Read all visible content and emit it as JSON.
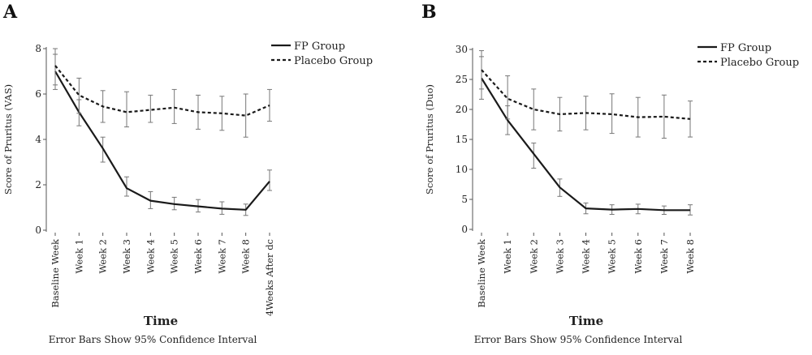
{
  "chart_data": [
    {
      "type": "line",
      "panel_label": "A",
      "ylabel": "Score of Pruritus (VAS)",
      "xlabel": "Time",
      "caption": "Error Bars Show 95% Confidence Interval",
      "ylim": [
        0,
        8
      ],
      "yticks": [
        0,
        2,
        4,
        6,
        8
      ],
      "ytick_labels": [
        "0",
        "2",
        "4",
        "6",
        "8"
      ],
      "categories": [
        "Baseline Week",
        "Week 1",
        "Week 2",
        "Week 3",
        "Week 4",
        "Week 5",
        "Week 6",
        "Week 7",
        "Week 8",
        "4Weeks After dc"
      ],
      "legend_position": "top-right",
      "series": [
        {
          "name": "FP Group",
          "style": "solid",
          "values": [
            7.0,
            5.2,
            3.6,
            1.85,
            1.3,
            1.15,
            1.05,
            0.95,
            0.9,
            2.15
          ],
          "err_low": [
            6.2,
            4.6,
            3.0,
            1.5,
            0.95,
            0.9,
            0.8,
            0.7,
            0.65,
            1.75
          ],
          "err_high": [
            7.75,
            5.75,
            4.1,
            2.35,
            1.7,
            1.45,
            1.35,
            1.25,
            1.15,
            2.65
          ]
        },
        {
          "name": "Placebo Group",
          "style": "dashed",
          "values": [
            7.25,
            5.95,
            5.45,
            5.2,
            5.3,
            5.4,
            5.2,
            5.15,
            5.05,
            5.5
          ],
          "err_low": [
            6.4,
            5.15,
            4.75,
            4.55,
            4.75,
            4.7,
            4.45,
            4.4,
            4.1,
            4.8
          ],
          "err_high": [
            8.0,
            6.7,
            6.15,
            6.1,
            5.95,
            6.2,
            5.95,
            5.9,
            6.0,
            6.2
          ]
        }
      ]
    },
    {
      "type": "line",
      "panel_label": "B",
      "ylabel": "Score of Pruritus (Duo)",
      "xlabel": "Time",
      "caption": "Error Bars Show 95% Confidence Interval",
      "ylim": [
        0,
        30
      ],
      "yticks": [
        0,
        5,
        10,
        15,
        20,
        25,
        30
      ],
      "ytick_labels": [
        "0",
        "5",
        "10",
        "15",
        "20",
        "25",
        "30"
      ],
      "categories": [
        "Baseline Week",
        "Week 1",
        "Week 2",
        "Week 3",
        "Week 4",
        "Week 5",
        "Week 6",
        "Week 7",
        "Week 8"
      ],
      "legend_position": "top-right",
      "series": [
        {
          "name": "FP Group",
          "style": "solid",
          "values": [
            25.2,
            18.2,
            12.6,
            7.0,
            3.5,
            3.3,
            3.4,
            3.2,
            3.2
          ],
          "err_low": [
            21.7,
            15.8,
            10.2,
            5.5,
            2.6,
            2.5,
            2.6,
            2.5,
            2.4
          ],
          "err_high": [
            28.8,
            20.6,
            14.4,
            8.4,
            4.4,
            4.1,
            4.2,
            3.9,
            4.1
          ]
        },
        {
          "name": "Placebo Group",
          "style": "dashed",
          "values": [
            26.6,
            21.8,
            20.0,
            19.2,
            19.4,
            19.2,
            18.7,
            18.8,
            18.4
          ],
          "err_low": [
            23.4,
            18.4,
            16.6,
            16.4,
            16.6,
            16.0,
            15.4,
            15.2,
            15.4
          ],
          "err_high": [
            29.8,
            25.6,
            23.4,
            22.0,
            22.2,
            22.6,
            22.0,
            22.4,
            21.4
          ]
        }
      ]
    }
  ]
}
